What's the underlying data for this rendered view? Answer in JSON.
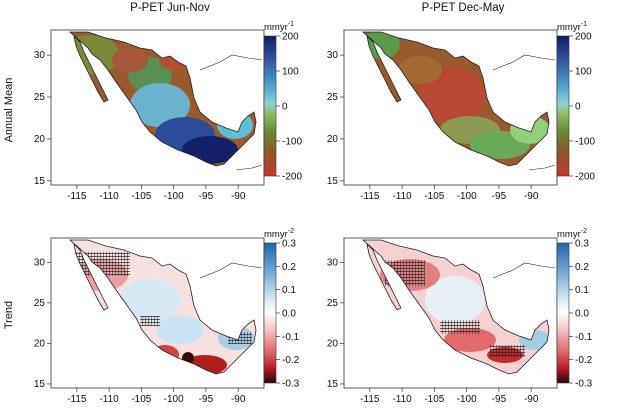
{
  "titles": {
    "left": "P-PET Jun-Nov",
    "right": "P-PET Dec-May"
  },
  "row_labels": {
    "top": "Annual Mean",
    "bottom": "Trend"
  },
  "axes": {
    "lon_ticks": [
      "-115",
      "-110",
      "-105",
      "-100",
      "-95",
      "-90"
    ],
    "lat_ticks": [
      "15",
      "20",
      "25",
      "30"
    ]
  },
  "colorbars": {
    "mean": {
      "unit": "mmyr",
      "exponent": "-1",
      "ticks": [
        "200",
        "100",
        "0",
        "-100",
        "-200"
      ],
      "colors": [
        "#0d1c5e",
        "#2f4f9e",
        "#4aa0c8",
        "#8fd1d6",
        "#a3c36a",
        "#6fa84a",
        "#8a6a2a",
        "#a8472a",
        "#c8332a"
      ]
    },
    "trend": {
      "unit": "mmyr",
      "exponent": "-2",
      "ticks": [
        "0.3",
        "0.2",
        "0.1",
        "0.0",
        "-0.1",
        "-0.2",
        "-0.3"
      ],
      "colors": [
        "#2166ac",
        "#6fa7d1",
        "#c5dff0",
        "#ffffff",
        "#f4c2c2",
        "#e06666",
        "#b2182b",
        "#3a0a0a"
      ]
    }
  },
  "map_colors": {
    "mean_left": {
      "north": "#a45a2a",
      "center": "#5fa7c6",
      "south": "#1a2a80",
      "coast": "#7a9a3a",
      "yucatan": "#5cc1d8"
    },
    "mean_right": {
      "north": "#8f5a2e",
      "center": "#b8503a",
      "south": "#7aa84c",
      "coast": "#4e9a52",
      "yucatan": "#8fcf7a"
    },
    "trend_left": {
      "base": "#f7e3e3",
      "blue": "#c9e3f2",
      "red": "#e34a4a",
      "dark": "#5a0f0f"
    },
    "trend_right": {
      "base": "#f4d6d6",
      "blue": "#d8ebf6",
      "red": "#d94b4b",
      "dark": "#7a1a1a"
    }
  }
}
